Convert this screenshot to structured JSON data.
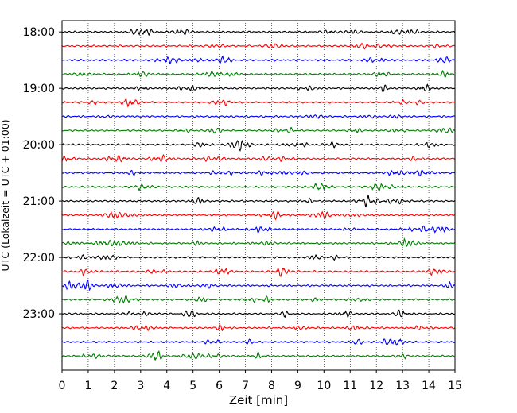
{
  "chart_data": {
    "type": "line",
    "title": "",
    "xlabel": "Zeit  [min]",
    "ylabel": "UTC (Lokalzeit = UTC + 01:00)",
    "xlim": [
      0,
      15
    ],
    "xticks": [
      0,
      1,
      2,
      3,
      4,
      5,
      6,
      7,
      8,
      9,
      10,
      11,
      12,
      13,
      14,
      15
    ],
    "xtick_labels": [
      "0",
      "1",
      "2",
      "3",
      "4",
      "5",
      "6",
      "7",
      "8",
      "9",
      "10",
      "11",
      "12",
      "13",
      "14",
      "15"
    ],
    "ylim_hours": [
      17.8,
      24.0
    ],
    "yticks_hours": [
      18,
      19,
      20,
      21,
      22,
      23
    ],
    "ytick_labels": [
      "18:00",
      "19:00",
      "20:00",
      "21:00",
      "22:00",
      "23:00"
    ],
    "y_inverted": true,
    "grid": "vertical-dotted",
    "legend": "none",
    "trace_colors": [
      "#000000",
      "#ff0000",
      "#0000ff",
      "#008000"
    ],
    "trace_interval_min": 15,
    "trace_start_hours": [
      18.0,
      18.25,
      18.5,
      18.75,
      19.0,
      19.25,
      19.5,
      19.75,
      20.0,
      20.25,
      20.5,
      20.75,
      21.0,
      21.25,
      21.5,
      21.75,
      22.0,
      22.25,
      22.5,
      22.75,
      23.0,
      23.25,
      23.5,
      23.75
    ]
  }
}
